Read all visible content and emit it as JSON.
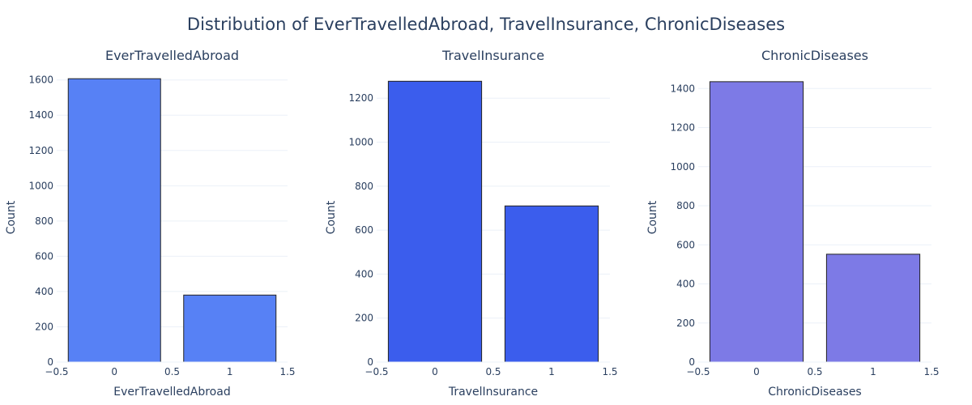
{
  "title": "Distribution of EverTravelledAbroad, TravelInsurance, ChronicDiseases",
  "chart_data": [
    {
      "type": "bar",
      "title": "EverTravelledAbroad",
      "xlabel": "EverTravelledAbroad",
      "ylabel": "Count",
      "x": [
        0,
        1
      ],
      "values": [
        1607,
        380
      ],
      "xlim": [
        -0.5,
        1.5
      ],
      "ylim": [
        0,
        1600
      ],
      "xticks": [
        "−0.5",
        "0",
        "0.5",
        "1",
        "1.5"
      ],
      "yticks": [
        0,
        200,
        400,
        600,
        800,
        1000,
        1200,
        1400,
        1600
      ],
      "color": "#5781f5",
      "grid": true
    },
    {
      "type": "bar",
      "title": "TravelInsurance",
      "xlabel": "TravelInsurance",
      "ylabel": "Count",
      "x": [
        0,
        1
      ],
      "values": [
        1277,
        710
      ],
      "xlim": [
        -0.5,
        1.5
      ],
      "ylim": [
        0,
        1200
      ],
      "xticks": [
        "−0.5",
        "0",
        "0.5",
        "1",
        "1.5"
      ],
      "yticks": [
        0,
        200,
        400,
        600,
        800,
        1000,
        1200
      ],
      "color": "#3b5ded",
      "grid": true
    },
    {
      "type": "bar",
      "title": "ChronicDiseases",
      "xlabel": "ChronicDiseases",
      "ylabel": "Count",
      "x": [
        0,
        1
      ],
      "values": [
        1435,
        552
      ],
      "xlim": [
        -0.5,
        1.5
      ],
      "ylim": [
        0,
        1400
      ],
      "xticks": [
        "−0.5",
        "0",
        "0.5",
        "1",
        "1.5"
      ],
      "yticks": [
        0,
        200,
        400,
        600,
        800,
        1000,
        1200,
        1400
      ],
      "color": "#7d7ae6",
      "grid": true
    }
  ]
}
